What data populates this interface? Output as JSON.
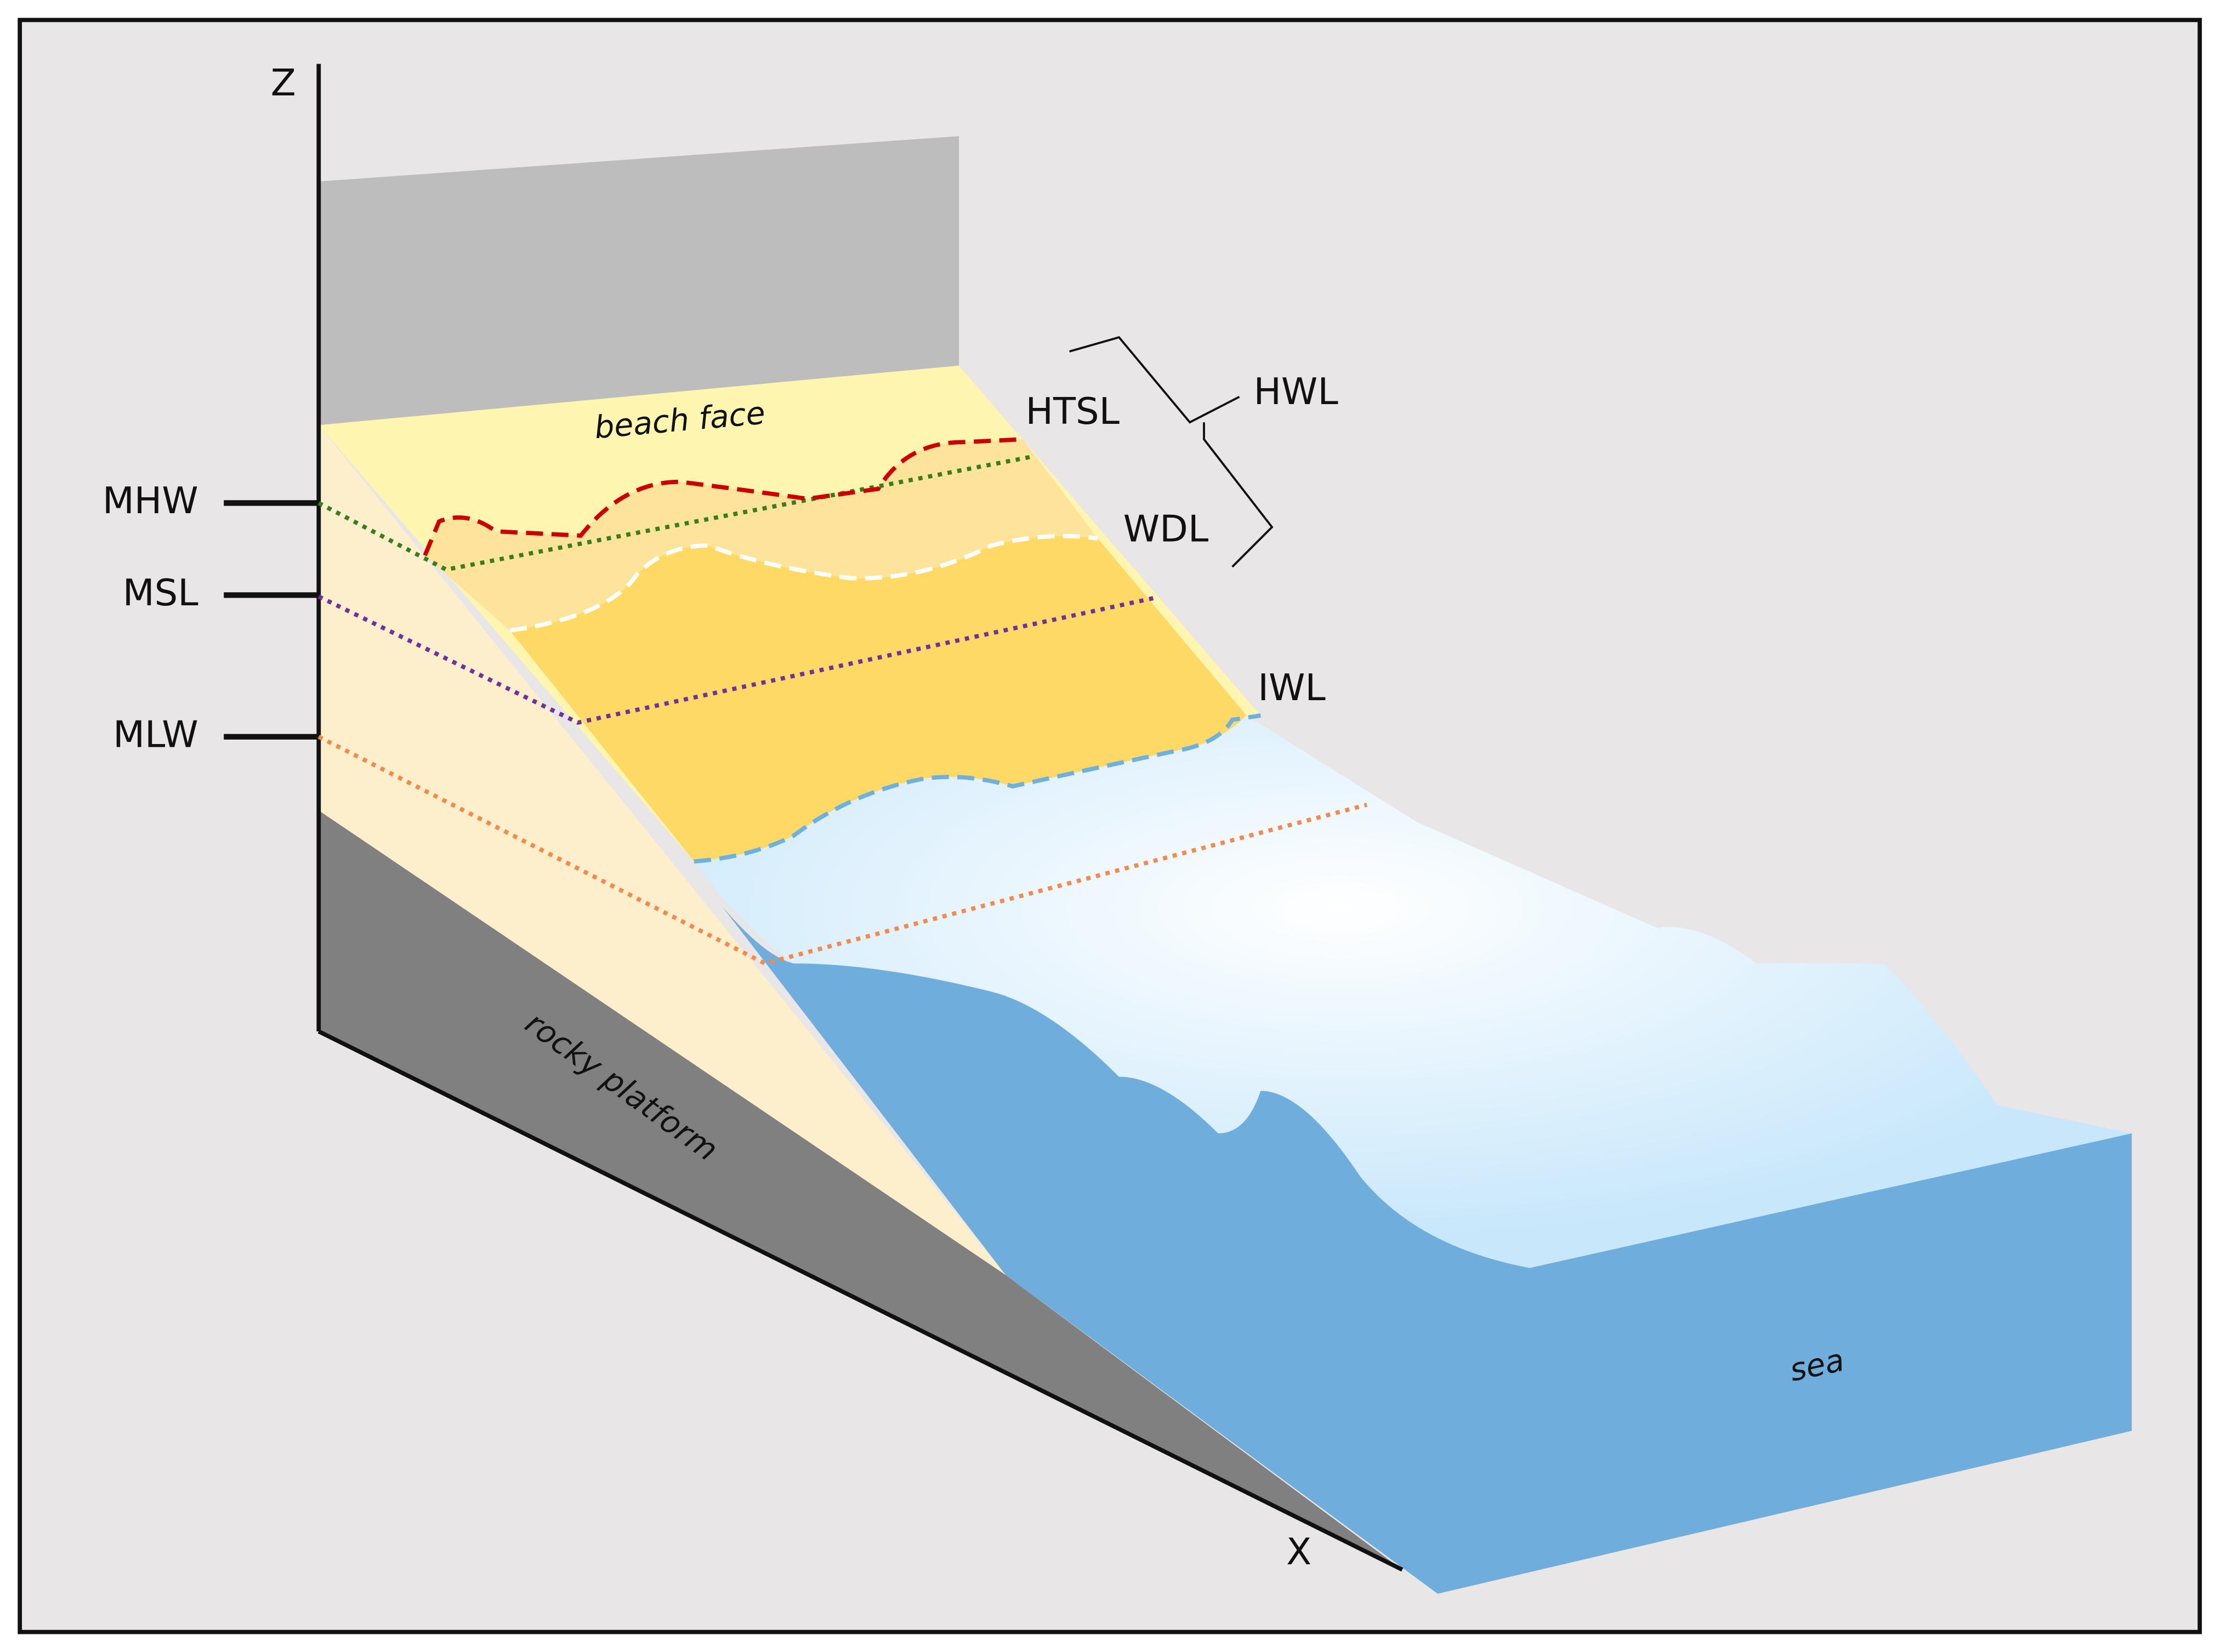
{
  "axes": {
    "z": "Z",
    "x": "X"
  },
  "tide_levels": [
    {
      "label": "MHW"
    },
    {
      "label": "MSL"
    },
    {
      "label": "MLW"
    }
  ],
  "shoreline_indicators": [
    {
      "label": "HTSL"
    },
    {
      "label": "WDL"
    },
    {
      "label": "IWL"
    }
  ],
  "bracket_label": "HWL",
  "regions": {
    "beach": "beach face",
    "platform": "rocky platform",
    "water": "sea"
  }
}
